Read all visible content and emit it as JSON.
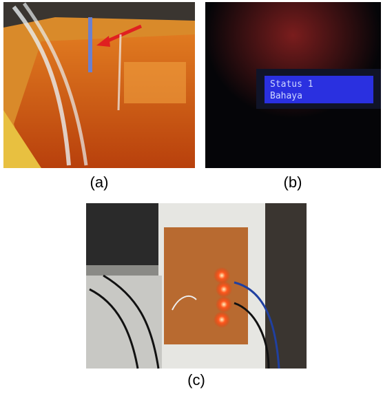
{
  "panels": [
    {
      "caption": "(a)"
    },
    {
      "caption": "(b)",
      "screen_lines": [
        "Status 1",
        "Bahaya"
      ]
    },
    {
      "caption": "(c)"
    }
  ]
}
